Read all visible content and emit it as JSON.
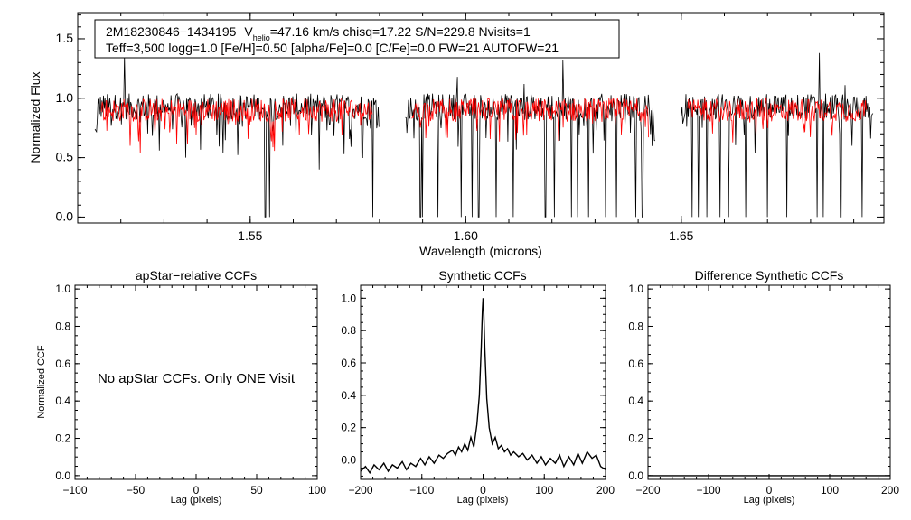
{
  "chart_data": [
    {
      "type": "line",
      "id": "spectrum",
      "xlabel": "Wavelength (microns)",
      "ylabel": "Normalized Flux",
      "xlim": [
        1.51,
        1.697
      ],
      "ylim": [
        -0.05,
        1.72
      ],
      "xticks": [
        1.55,
        1.6,
        1.65
      ],
      "xtick_labels": [
        "1.55",
        "1.60",
        "1.65"
      ],
      "yticks": [
        0.0,
        0.5,
        1.0,
        1.5
      ],
      "ytick_labels": [
        "0.0",
        "0.5",
        "1.0",
        "1.5"
      ],
      "annotation": {
        "star_id": "2M18230846−1434195",
        "v_main": "V",
        "v_sub": "helio",
        "v_rest": "=47.16 km/s  chisq=17.22  S/N=229.8  Nvisits=1",
        "line2": "Teff=3,500 logg=1.0 [Fe/H]=0.50 [alpha/Fe]=0.0 [C/Fe]=0.0 FW=21 AUTOFW=21"
      },
      "series": [
        {
          "name": "observed",
          "color": "#000000",
          "mean": 0.93,
          "chip_ranges": [
            [
              1.514,
              1.58
            ],
            [
              1.586,
              1.644
            ],
            [
              1.65,
              1.6945
            ]
          ],
          "deep_lines": [
            [
              1.5145,
              0.0
            ],
            [
              1.529,
              0.56
            ],
            [
              1.535,
              0.5
            ],
            [
              1.5535,
              0.0
            ],
            [
              1.5545,
              0.0
            ],
            [
              1.5575,
              0.6
            ],
            [
              1.566,
              0.4
            ],
            [
              1.576,
              0.5
            ],
            [
              1.5785,
              0.0
            ],
            [
              1.5795,
              0.0
            ],
            [
              1.5865,
              0.0
            ],
            [
              1.5895,
              0.0
            ],
            [
              1.59,
              0.0
            ],
            [
              1.5935,
              0.0
            ],
            [
              1.599,
              0.0
            ],
            [
              1.6015,
              0.0
            ],
            [
              1.603,
              0.0
            ],
            [
              1.607,
              0.0
            ],
            [
              1.611,
              0.0
            ],
            [
              1.6185,
              0.0
            ],
            [
              1.6205,
              0.0
            ],
            [
              1.6245,
              0.0
            ],
            [
              1.626,
              0.0
            ],
            [
              1.6285,
              0.0
            ],
            [
              1.6325,
              0.0
            ],
            [
              1.635,
              0.0
            ],
            [
              1.6395,
              0.0
            ],
            [
              1.641,
              0.0
            ],
            [
              1.6505,
              0.0
            ],
            [
              1.6525,
              0.0
            ],
            [
              1.654,
              0.0
            ],
            [
              1.656,
              0.0
            ],
            [
              1.659,
              0.0
            ],
            [
              1.661,
              0.0
            ],
            [
              1.665,
              0.0
            ],
            [
              1.67,
              0.0
            ],
            [
              1.6745,
              0.0
            ],
            [
              1.6815,
              0.0
            ],
            [
              1.683,
              0.0
            ],
            [
              1.687,
              0.0
            ],
            [
              1.688,
              0.0
            ],
            [
              1.692,
              0.0
            ]
          ],
          "spikes": [
            [
              1.5208,
              1.36
            ],
            [
              1.6225,
              1.32
            ],
            [
              1.682,
              1.38
            ],
            [
              1.6135,
              1.12
            ],
            [
              1.688,
              1.11
            ],
            [
              1.598,
              1.18
            ]
          ]
        },
        {
          "name": "model",
          "color": "#ff0000",
          "mean": 0.9
        }
      ]
    },
    {
      "type": "line",
      "id": "apstar-ccf",
      "title": "apStar−relative CCFs",
      "xlabel": "Lag (pixels)",
      "ylabel": "Normalized CCF",
      "xlim": [
        -100,
        100
      ],
      "ylim": [
        -0.02,
        1.02
      ],
      "xticks": [
        -100,
        -50,
        0,
        50,
        100
      ],
      "xtick_labels": [
        "−100",
        "−50",
        "0",
        "50",
        "100"
      ],
      "yticks": [
        0.0,
        0.2,
        0.4,
        0.6,
        0.8,
        1.0
      ],
      "ytick_labels": [
        "0.0",
        "0.2",
        "0.4",
        "0.6",
        "0.8",
        "1.0"
      ],
      "message": "No apStar CCFs.  Only ONE Visit",
      "series": []
    },
    {
      "type": "line",
      "id": "synthetic-ccf",
      "title": "Synthetic CCFs",
      "xlabel": "Lag (pixels)",
      "ylabel": "",
      "xlim": [
        -200,
        200
      ],
      "ylim": [
        -0.12,
        1.08
      ],
      "xticks": [
        -200,
        -100,
        0,
        100,
        200
      ],
      "xtick_labels": [
        "−200",
        "−100",
        "0",
        "100",
        "200"
      ],
      "yticks": [
        0.0,
        0.2,
        0.4,
        0.6,
        0.8,
        1.0
      ],
      "ytick_labels": [
        "0.0",
        "0.2",
        "0.4",
        "0.6",
        "0.8",
        "1.0"
      ],
      "zero_line": 0.0,
      "series": [
        {
          "name": "ccf",
          "color": "#000000",
          "x": [
            -200,
            -192,
            -185,
            -178,
            -170,
            -162,
            -155,
            -148,
            -140,
            -132,
            -125,
            -118,
            -110,
            -102,
            -95,
            -88,
            -80,
            -72,
            -65,
            -58,
            -50,
            -45,
            -40,
            -35,
            -30,
            -25,
            -20,
            -15,
            -10,
            -6,
            -3,
            -1,
            0,
            1,
            3,
            6,
            10,
            15,
            20,
            25,
            30,
            35,
            40,
            45,
            50,
            58,
            65,
            72,
            80,
            88,
            95,
            102,
            110,
            118,
            125,
            132,
            140,
            148,
            155,
            162,
            170,
            178,
            185,
            192,
            200
          ],
          "y": [
            -0.07,
            -0.04,
            -0.08,
            -0.03,
            -0.06,
            -0.02,
            -0.07,
            -0.03,
            -0.05,
            -0.01,
            -0.06,
            -0.02,
            -0.04,
            0.01,
            -0.03,
            0.02,
            -0.02,
            0.03,
            0.01,
            0.04,
            0.06,
            0.03,
            0.08,
            0.05,
            0.1,
            0.06,
            0.14,
            0.08,
            0.22,
            0.4,
            0.7,
            0.93,
            1.0,
            0.93,
            0.68,
            0.38,
            0.2,
            0.1,
            0.14,
            0.07,
            0.09,
            0.05,
            0.07,
            0.03,
            0.05,
            0.02,
            0.04,
            0.0,
            0.03,
            -0.02,
            0.02,
            -0.03,
            0.01,
            -0.02,
            0.03,
            -0.04,
            0.02,
            -0.03,
            0.04,
            -0.02,
            0.05,
            0.01,
            0.03,
            -0.04,
            -0.06
          ]
        }
      ]
    },
    {
      "type": "line",
      "id": "difference-ccf",
      "title": "Difference Synthetic CCFs",
      "xlabel": "Lag (pixels)",
      "ylabel": "",
      "xlim": [
        -200,
        200
      ],
      "ylim": [
        -0.02,
        1.02
      ],
      "xticks": [
        -200,
        -100,
        0,
        100,
        200
      ],
      "xtick_labels": [
        "−200",
        "−100",
        "0",
        "100",
        "200"
      ],
      "yticks": [
        0.0,
        0.2,
        0.4,
        0.6,
        0.8,
        1.0
      ],
      "ytick_labels": [
        "0.0",
        "0.2",
        "0.4",
        "0.6",
        "0.8",
        "1.0"
      ],
      "series": [
        {
          "name": "difference",
          "color": "#000000",
          "x": [
            -200,
            200
          ],
          "y": [
            0.0,
            0.0
          ]
        }
      ]
    }
  ]
}
